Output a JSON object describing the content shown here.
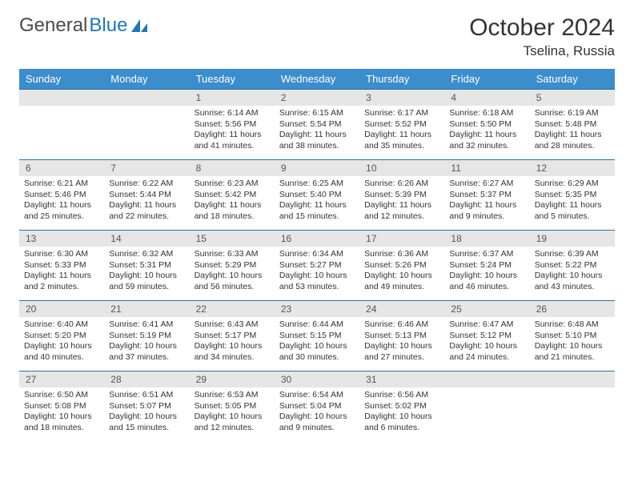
{
  "logo": {
    "part1": "General",
    "part2": "Blue"
  },
  "title": "October 2024",
  "location": "Tselina, Russia",
  "dayHeaders": [
    "Sunday",
    "Monday",
    "Tuesday",
    "Wednesday",
    "Thursday",
    "Friday",
    "Saturday"
  ],
  "colors": {
    "headerBg": "#3c8dcc",
    "borderTop": "#2d6fa8",
    "dayBg": "#e6e6e6",
    "text": "#333333"
  },
  "layout": {
    "cols": 7,
    "rows": 5,
    "startOffset": 2
  },
  "days": [
    {
      "n": "1",
      "sunrise": "6:14 AM",
      "sunset": "5:56 PM",
      "daylight": "11 hours and 41 minutes."
    },
    {
      "n": "2",
      "sunrise": "6:15 AM",
      "sunset": "5:54 PM",
      "daylight": "11 hours and 38 minutes."
    },
    {
      "n": "3",
      "sunrise": "6:17 AM",
      "sunset": "5:52 PM",
      "daylight": "11 hours and 35 minutes."
    },
    {
      "n": "4",
      "sunrise": "6:18 AM",
      "sunset": "5:50 PM",
      "daylight": "11 hours and 32 minutes."
    },
    {
      "n": "5",
      "sunrise": "6:19 AM",
      "sunset": "5:48 PM",
      "daylight": "11 hours and 28 minutes."
    },
    {
      "n": "6",
      "sunrise": "6:21 AM",
      "sunset": "5:46 PM",
      "daylight": "11 hours and 25 minutes."
    },
    {
      "n": "7",
      "sunrise": "6:22 AM",
      "sunset": "5:44 PM",
      "daylight": "11 hours and 22 minutes."
    },
    {
      "n": "8",
      "sunrise": "6:23 AM",
      "sunset": "5:42 PM",
      "daylight": "11 hours and 18 minutes."
    },
    {
      "n": "9",
      "sunrise": "6:25 AM",
      "sunset": "5:40 PM",
      "daylight": "11 hours and 15 minutes."
    },
    {
      "n": "10",
      "sunrise": "6:26 AM",
      "sunset": "5:39 PM",
      "daylight": "11 hours and 12 minutes."
    },
    {
      "n": "11",
      "sunrise": "6:27 AM",
      "sunset": "5:37 PM",
      "daylight": "11 hours and 9 minutes."
    },
    {
      "n": "12",
      "sunrise": "6:29 AM",
      "sunset": "5:35 PM",
      "daylight": "11 hours and 5 minutes."
    },
    {
      "n": "13",
      "sunrise": "6:30 AM",
      "sunset": "5:33 PM",
      "daylight": "11 hours and 2 minutes."
    },
    {
      "n": "14",
      "sunrise": "6:32 AM",
      "sunset": "5:31 PM",
      "daylight": "10 hours and 59 minutes."
    },
    {
      "n": "15",
      "sunrise": "6:33 AM",
      "sunset": "5:29 PM",
      "daylight": "10 hours and 56 minutes."
    },
    {
      "n": "16",
      "sunrise": "6:34 AM",
      "sunset": "5:27 PM",
      "daylight": "10 hours and 53 minutes."
    },
    {
      "n": "17",
      "sunrise": "6:36 AM",
      "sunset": "5:26 PM",
      "daylight": "10 hours and 49 minutes."
    },
    {
      "n": "18",
      "sunrise": "6:37 AM",
      "sunset": "5:24 PM",
      "daylight": "10 hours and 46 minutes."
    },
    {
      "n": "19",
      "sunrise": "6:39 AM",
      "sunset": "5:22 PM",
      "daylight": "10 hours and 43 minutes."
    },
    {
      "n": "20",
      "sunrise": "6:40 AM",
      "sunset": "5:20 PM",
      "daylight": "10 hours and 40 minutes."
    },
    {
      "n": "21",
      "sunrise": "6:41 AM",
      "sunset": "5:19 PM",
      "daylight": "10 hours and 37 minutes."
    },
    {
      "n": "22",
      "sunrise": "6:43 AM",
      "sunset": "5:17 PM",
      "daylight": "10 hours and 34 minutes."
    },
    {
      "n": "23",
      "sunrise": "6:44 AM",
      "sunset": "5:15 PM",
      "daylight": "10 hours and 30 minutes."
    },
    {
      "n": "24",
      "sunrise": "6:46 AM",
      "sunset": "5:13 PM",
      "daylight": "10 hours and 27 minutes."
    },
    {
      "n": "25",
      "sunrise": "6:47 AM",
      "sunset": "5:12 PM",
      "daylight": "10 hours and 24 minutes."
    },
    {
      "n": "26",
      "sunrise": "6:48 AM",
      "sunset": "5:10 PM",
      "daylight": "10 hours and 21 minutes."
    },
    {
      "n": "27",
      "sunrise": "6:50 AM",
      "sunset": "5:08 PM",
      "daylight": "10 hours and 18 minutes."
    },
    {
      "n": "28",
      "sunrise": "6:51 AM",
      "sunset": "5:07 PM",
      "daylight": "10 hours and 15 minutes."
    },
    {
      "n": "29",
      "sunrise": "6:53 AM",
      "sunset": "5:05 PM",
      "daylight": "10 hours and 12 minutes."
    },
    {
      "n": "30",
      "sunrise": "6:54 AM",
      "sunset": "5:04 PM",
      "daylight": "10 hours and 9 minutes."
    },
    {
      "n": "31",
      "sunrise": "6:56 AM",
      "sunset": "5:02 PM",
      "daylight": "10 hours and 6 minutes."
    }
  ]
}
